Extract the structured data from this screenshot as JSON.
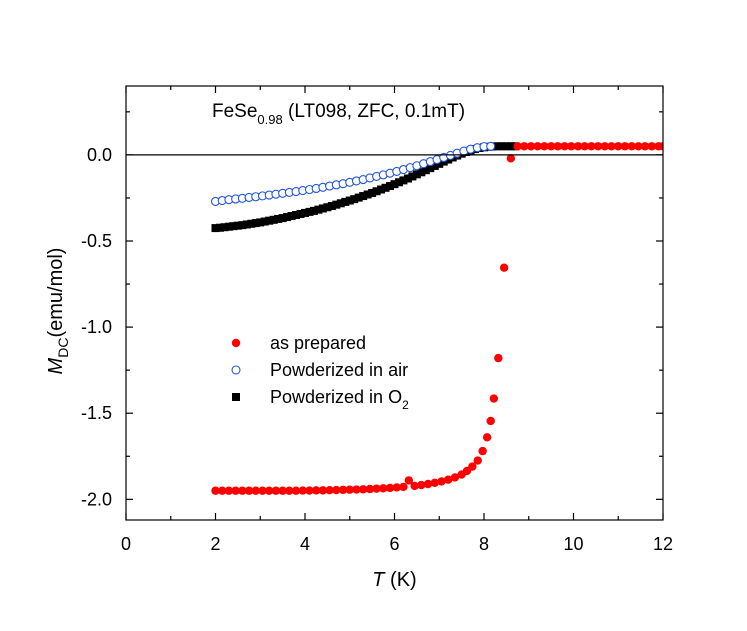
{
  "chart_data": {
    "type": "scatter",
    "title": {
      "main": "FeSe",
      "subscript": "0.98",
      "suffix": " (LT098, ZFC, 0.1mT)"
    },
    "xlabel": {
      "var": "T",
      "unit": " (K)"
    },
    "ylabel": {
      "var": "M",
      "sub": "DC",
      "unit": "(emu/mol)"
    },
    "xlim": [
      0,
      12
    ],
    "ylim": [
      -2.12,
      0.4
    ],
    "xticks": [
      0,
      2,
      4,
      6,
      8,
      10,
      12
    ],
    "xtick_labels": [
      "0",
      "2",
      "4",
      "6",
      "8",
      "10",
      "12"
    ],
    "yticks": [
      0.0,
      -0.5,
      -1.0,
      -1.5,
      -2.0
    ],
    "ytick_labels": [
      "0.0",
      "-0.5",
      "-1.0",
      "-1.5",
      "-2.0"
    ],
    "zero_line": true,
    "legend_position": "center-left",
    "series": [
      {
        "name": "as prepared",
        "legend": {
          "text": "as prepared"
        },
        "marker": "filled-circle",
        "color": "#ff0000",
        "points": [
          [
            2.0,
            -1.95
          ],
          [
            2.15,
            -1.95
          ],
          [
            2.3,
            -1.95
          ],
          [
            2.45,
            -1.95
          ],
          [
            2.6,
            -1.95
          ],
          [
            2.75,
            -1.95
          ],
          [
            2.9,
            -1.95
          ],
          [
            3.05,
            -1.95
          ],
          [
            3.2,
            -1.95
          ],
          [
            3.35,
            -1.95
          ],
          [
            3.5,
            -1.95
          ],
          [
            3.65,
            -1.95
          ],
          [
            3.8,
            -1.95
          ],
          [
            3.95,
            -1.949
          ],
          [
            4.1,
            -1.949
          ],
          [
            4.25,
            -1.948
          ],
          [
            4.4,
            -1.948
          ],
          [
            4.55,
            -1.947
          ],
          [
            4.7,
            -1.946
          ],
          [
            4.85,
            -1.945
          ],
          [
            5.0,
            -1.944
          ],
          [
            5.15,
            -1.943
          ],
          [
            5.3,
            -1.942
          ],
          [
            5.45,
            -1.94
          ],
          [
            5.6,
            -1.938
          ],
          [
            5.75,
            -1.936
          ],
          [
            5.9,
            -1.934
          ],
          [
            6.05,
            -1.931
          ],
          [
            6.2,
            -1.928
          ],
          [
            6.32,
            -1.89
          ],
          [
            6.45,
            -1.922
          ],
          [
            6.6,
            -1.917
          ],
          [
            6.75,
            -1.911
          ],
          [
            6.9,
            -1.904
          ],
          [
            7.05,
            -1.896
          ],
          [
            7.2,
            -1.886
          ],
          [
            7.35,
            -1.873
          ],
          [
            7.5,
            -1.856
          ],
          [
            7.62,
            -1.835
          ],
          [
            7.74,
            -1.81
          ],
          [
            7.86,
            -1.775
          ],
          [
            7.97,
            -1.72
          ],
          [
            8.07,
            -1.64
          ],
          [
            8.15,
            -1.545
          ],
          [
            8.22,
            -1.415
          ],
          [
            8.32,
            -1.18
          ],
          [
            8.45,
            -0.655
          ],
          [
            8.6,
            -0.02
          ],
          [
            8.75,
            0.05
          ],
          [
            8.9,
            0.05
          ],
          [
            9.05,
            0.05
          ],
          [
            9.2,
            0.05
          ],
          [
            9.35,
            0.05
          ],
          [
            9.5,
            0.05
          ],
          [
            9.65,
            0.05
          ],
          [
            9.8,
            0.05
          ],
          [
            9.95,
            0.05
          ],
          [
            10.1,
            0.05
          ],
          [
            10.25,
            0.05
          ],
          [
            10.4,
            0.05
          ],
          [
            10.55,
            0.05
          ],
          [
            10.7,
            0.05
          ],
          [
            10.85,
            0.05
          ],
          [
            11.0,
            0.05
          ],
          [
            11.15,
            0.05
          ],
          [
            11.3,
            0.05
          ],
          [
            11.45,
            0.05
          ],
          [
            11.6,
            0.05
          ],
          [
            11.75,
            0.05
          ],
          [
            11.9,
            0.05
          ],
          [
            12.0,
            0.05
          ]
        ]
      },
      {
        "name": "Powderized in air",
        "legend": {
          "text": "Powderized in air"
        },
        "marker": "open-circle",
        "color": "#2255dd",
        "points": [
          [
            2.0,
            -0.27
          ],
          [
            2.15,
            -0.265
          ],
          [
            2.3,
            -0.26
          ],
          [
            2.45,
            -0.256
          ],
          [
            2.6,
            -0.252
          ],
          [
            2.75,
            -0.247
          ],
          [
            2.9,
            -0.243
          ],
          [
            3.05,
            -0.238
          ],
          [
            3.2,
            -0.233
          ],
          [
            3.35,
            -0.228
          ],
          [
            3.5,
            -0.223
          ],
          [
            3.65,
            -0.218
          ],
          [
            3.8,
            -0.213
          ],
          [
            3.95,
            -0.207
          ],
          [
            4.1,
            -0.201
          ],
          [
            4.25,
            -0.195
          ],
          [
            4.4,
            -0.188
          ],
          [
            4.55,
            -0.181
          ],
          [
            4.7,
            -0.174
          ],
          [
            4.85,
            -0.167
          ],
          [
            5.0,
            -0.159
          ],
          [
            5.15,
            -0.151
          ],
          [
            5.3,
            -0.143
          ],
          [
            5.45,
            -0.134
          ],
          [
            5.6,
            -0.125
          ],
          [
            5.75,
            -0.116
          ],
          [
            5.9,
            -0.106
          ],
          [
            6.05,
            -0.096
          ],
          [
            6.2,
            -0.085
          ],
          [
            6.35,
            -0.074
          ],
          [
            6.5,
            -0.063
          ],
          [
            6.65,
            -0.051
          ],
          [
            6.8,
            -0.039
          ],
          [
            6.95,
            -0.027
          ],
          [
            7.1,
            -0.015
          ],
          [
            7.25,
            -0.003
          ],
          [
            7.4,
            0.01
          ],
          [
            7.55,
            0.022
          ],
          [
            7.7,
            0.033
          ],
          [
            7.85,
            0.042
          ],
          [
            8.0,
            0.048
          ],
          [
            8.15,
            0.05
          ]
        ]
      },
      {
        "name": "Powderized in O2",
        "legend": {
          "text": "Powderized in O",
          "sub": "2"
        },
        "marker": "filled-square",
        "color": "#000000",
        "points": [
          [
            2.0,
            -0.425
          ],
          [
            2.1,
            -0.423
          ],
          [
            2.2,
            -0.42
          ],
          [
            2.3,
            -0.417
          ],
          [
            2.4,
            -0.414
          ],
          [
            2.5,
            -0.411
          ],
          [
            2.6,
            -0.408
          ],
          [
            2.7,
            -0.404
          ],
          [
            2.8,
            -0.4
          ],
          [
            2.9,
            -0.396
          ],
          [
            3.0,
            -0.392
          ],
          [
            3.1,
            -0.387
          ],
          [
            3.2,
            -0.382
          ],
          [
            3.3,
            -0.377
          ],
          [
            3.4,
            -0.372
          ],
          [
            3.5,
            -0.367
          ],
          [
            3.6,
            -0.361
          ],
          [
            3.7,
            -0.355
          ],
          [
            3.8,
            -0.349
          ],
          [
            3.9,
            -0.343
          ],
          [
            4.0,
            -0.337
          ],
          [
            4.1,
            -0.331
          ],
          [
            4.2,
            -0.325
          ],
          [
            4.3,
            -0.318
          ],
          [
            4.4,
            -0.311
          ],
          [
            4.5,
            -0.304
          ],
          [
            4.6,
            -0.297
          ],
          [
            4.7,
            -0.289
          ],
          [
            4.8,
            -0.281
          ],
          [
            4.9,
            -0.273
          ],
          [
            5.0,
            -0.265
          ],
          [
            5.1,
            -0.257
          ],
          [
            5.2,
            -0.248
          ],
          [
            5.3,
            -0.239
          ],
          [
            5.4,
            -0.23
          ],
          [
            5.5,
            -0.221
          ],
          [
            5.6,
            -0.211
          ],
          [
            5.7,
            -0.201
          ],
          [
            5.8,
            -0.191
          ],
          [
            5.9,
            -0.181
          ],
          [
            6.0,
            -0.17
          ],
          [
            6.1,
            -0.159
          ],
          [
            6.2,
            -0.148
          ],
          [
            6.3,
            -0.137
          ],
          [
            6.4,
            -0.125
          ],
          [
            6.5,
            -0.113
          ],
          [
            6.6,
            -0.101
          ],
          [
            6.7,
            -0.089
          ],
          [
            6.8,
            -0.077
          ],
          [
            6.9,
            -0.064
          ],
          [
            7.0,
            -0.052
          ],
          [
            7.1,
            -0.039
          ],
          [
            7.2,
            -0.027
          ],
          [
            7.3,
            -0.015
          ],
          [
            7.4,
            -0.004
          ],
          [
            7.5,
            0.007
          ],
          [
            7.6,
            0.017
          ],
          [
            7.7,
            0.026
          ],
          [
            7.8,
            0.034
          ],
          [
            7.9,
            0.04
          ],
          [
            8.0,
            0.044
          ],
          [
            8.1,
            0.047
          ],
          [
            8.2,
            0.049
          ],
          [
            8.3,
            0.05
          ],
          [
            8.4,
            0.05
          ],
          [
            8.5,
            0.05
          ],
          [
            8.6,
            0.05
          ],
          [
            8.7,
            0.05
          ]
        ]
      }
    ]
  }
}
